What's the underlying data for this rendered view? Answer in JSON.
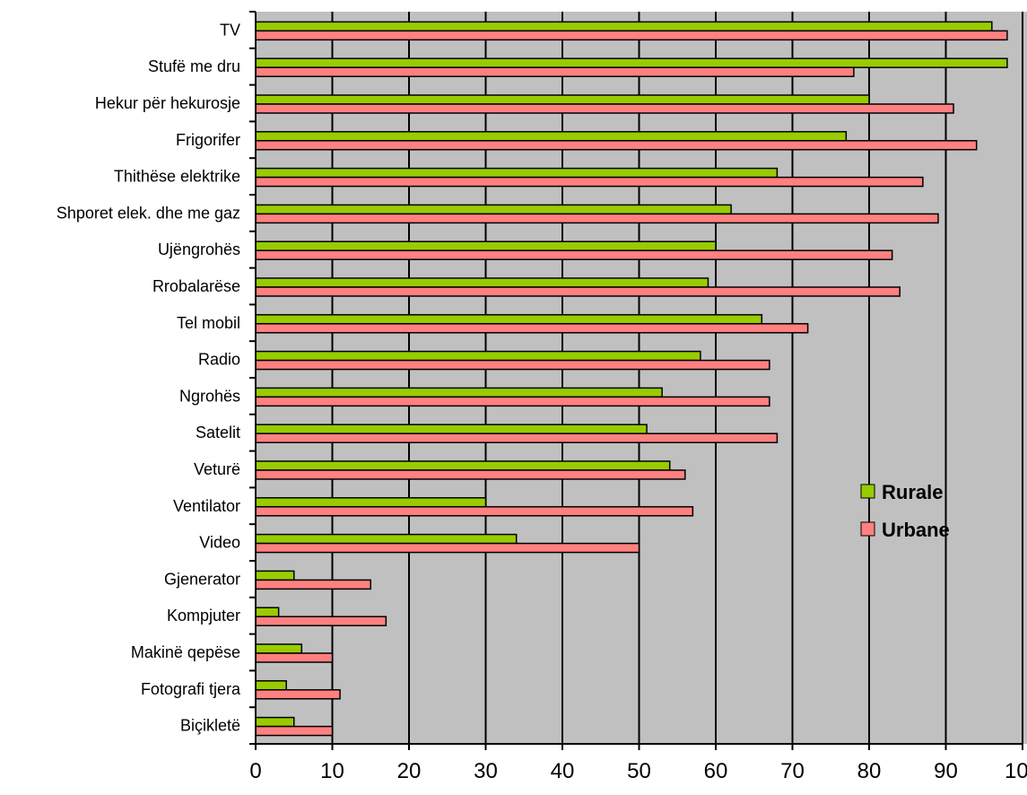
{
  "chart_data": {
    "type": "bar",
    "orientation": "horizontal",
    "categories": [
      "TV",
      "Stufë me dru",
      "Hekur për hekurosje",
      "Frigorifer",
      "Thithëse elektrike",
      "Shporet elek. dhe me gaz",
      "Ujëngrohës",
      "Rrobalarëse",
      "Tel mobil",
      "Radio",
      "Ngrohës",
      "Satelit",
      "Veturë",
      "Ventilator",
      "Video",
      "Gjenerator",
      "Kompjuter",
      "Makinë qepëse",
      "Fotografi tjera",
      "Biçikletë"
    ],
    "series": [
      {
        "name": "Rurale",
        "color": "#99cc00",
        "values": [
          96,
          98,
          80,
          77,
          68,
          62,
          60,
          59,
          66,
          58,
          53,
          51,
          54,
          30,
          34,
          5,
          3,
          6,
          4,
          5
        ]
      },
      {
        "name": "Urbane",
        "color": "#ff8080",
        "values": [
          98,
          78,
          91,
          94,
          87,
          89,
          83,
          84,
          72,
          67,
          67,
          68,
          56,
          57,
          50,
          15,
          17,
          10,
          11,
          10
        ]
      }
    ],
    "xlim": [
      0,
      100
    ],
    "xticks": [
      "0",
      "10",
      "20",
      "30",
      "40",
      "50",
      "60",
      "70",
      "80",
      "90",
      "100"
    ],
    "grid": true,
    "plot_background": "#c0c0c0",
    "legend_position": "right"
  }
}
